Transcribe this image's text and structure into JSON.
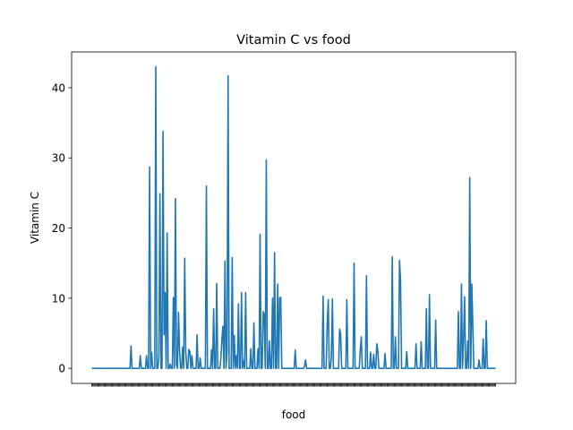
{
  "chart_data": {
    "type": "line",
    "title": "Vitamin C vs food",
    "xlabel": "food",
    "ylabel": "Vitamin C",
    "ylim": [
      -2.15,
      45.1
    ],
    "yticks": [
      0,
      10,
      20,
      30,
      40
    ],
    "grid": false,
    "color": "#1f77b4",
    "x_tick_labels_note": "x-axis has one unreadable, overlapping category label per food item",
    "series": [
      {
        "values": [
          0,
          0,
          0,
          0,
          0,
          0,
          0,
          0,
          0,
          0,
          0,
          0,
          0,
          0,
          0,
          0,
          0,
          0,
          0,
          0,
          0,
          0,
          0,
          0,
          0,
          0,
          0,
          0,
          0,
          0,
          0,
          0,
          0,
          0,
          0,
          0,
          0,
          0,
          3.2,
          0,
          0,
          0,
          0,
          0,
          0,
          0,
          0,
          1.8,
          0,
          0,
          0,
          0,
          0,
          1.8,
          0,
          0,
          28.7,
          0,
          2.3,
          0,
          0,
          0,
          43,
          0,
          0,
          1.7,
          24.9,
          0,
          0,
          33.8,
          4.8,
          10.8,
          0,
          19.3,
          0,
          0,
          0.6,
          0,
          0,
          10.1,
          0,
          24.2,
          0.5,
          0,
          8.0,
          2.6,
          0,
          0,
          3.0,
          0,
          15.7,
          2.5,
          0,
          0,
          2.7,
          2.4,
          0,
          1.8,
          0,
          0,
          0,
          0,
          4.8,
          0,
          0,
          1.5,
          0,
          0,
          0,
          0,
          0,
          26.0,
          0,
          0,
          0,
          0,
          2.7,
          0,
          8.5,
          0,
          0,
          12.1,
          0,
          0,
          0,
          1.4,
          4.2,
          6.0,
          0,
          15.3,
          0,
          2.2,
          41.7,
          0,
          0,
          0,
          15.8,
          0,
          4.7,
          0,
          1.8,
          0,
          9.2,
          0,
          0,
          10.8,
          0,
          1.1,
          0,
          10.8,
          0,
          0,
          0,
          0,
          2.8,
          0,
          0,
          6.5,
          0,
          0,
          0,
          2.8,
          0,
          19.1,
          0,
          0,
          8.1,
          7.7,
          0,
          29.7,
          0,
          0,
          3.9,
          0,
          0,
          10.0,
          0,
          16.5,
          0,
          0,
          12.0,
          0,
          10.1,
          10.1,
          0,
          0,
          0,
          0,
          0,
          0,
          0,
          0,
          0,
          0,
          0,
          0,
          0,
          2.6,
          0,
          0,
          0,
          0,
          0,
          0,
          0,
          0,
          0.3,
          1.2,
          0,
          0,
          0,
          0,
          0,
          0,
          0,
          0,
          0,
          0,
          0,
          0,
          0,
          0,
          0,
          0,
          10.3,
          0,
          0,
          0,
          6.4,
          9.8,
          0,
          0,
          1.4,
          9.9,
          0,
          0,
          0,
          0,
          0,
          0,
          5.6,
          4.9,
          0,
          0,
          0,
          0,
          0,
          9.8,
          0,
          0,
          0,
          0,
          0,
          0,
          15.0,
          0,
          0,
          0,
          0,
          0,
          2.6,
          4.5,
          0,
          0,
          0,
          0,
          13.2,
          0,
          0,
          0,
          2.3,
          0,
          0,
          2.0,
          0,
          0,
          3.5,
          2.5,
          0,
          0,
          0,
          0,
          0,
          0,
          2.1,
          0,
          0,
          0,
          0,
          0,
          0,
          15.9,
          0,
          0,
          4.5,
          0,
          0,
          0,
          15.4,
          12.6,
          0,
          0,
          0,
          0,
          0,
          2.4,
          0,
          0,
          0,
          0,
          0,
          0,
          0,
          0,
          3.5,
          0,
          0,
          0,
          0,
          3.8,
          0,
          0,
          0,
          0,
          8.5,
          0,
          0,
          10.5,
          0,
          0,
          0,
          0,
          0,
          6.9,
          0,
          0,
          0,
          0,
          0,
          0,
          0,
          0,
          0,
          0,
          0,
          0,
          0,
          0,
          0,
          0,
          0,
          0,
          0,
          0,
          0,
          8.1,
          0,
          0,
          12.0,
          0,
          3.9,
          10.2,
          0,
          0,
          3.9,
          0,
          27.2,
          0,
          12.0,
          5.9,
          0,
          0,
          0,
          0,
          0,
          1.2,
          0,
          0,
          0,
          4.2,
          0,
          0,
          6.8,
          0,
          0,
          0,
          0,
          0,
          0,
          0,
          0,
          0
        ]
      }
    ]
  }
}
